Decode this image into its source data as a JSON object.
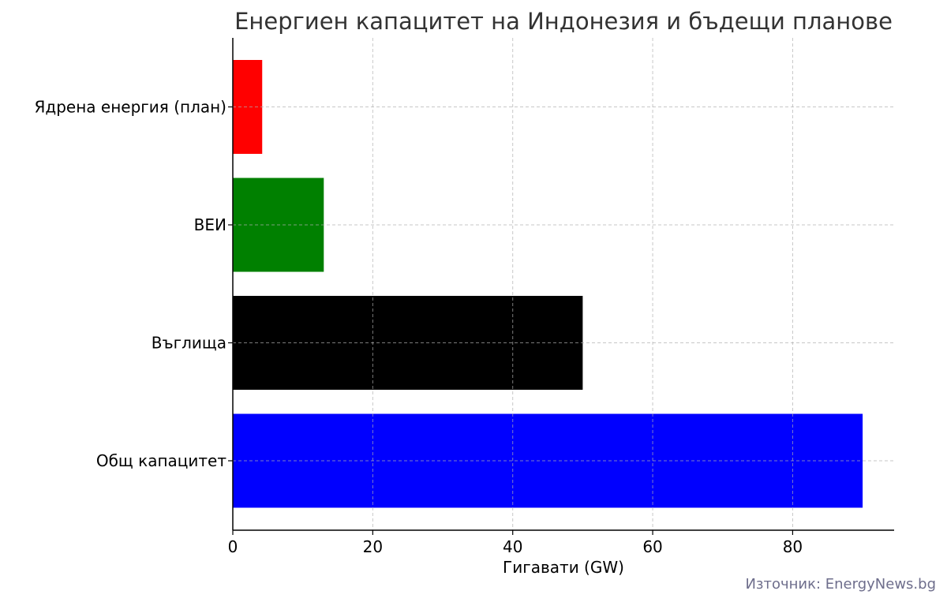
{
  "chart_data": {
    "type": "bar",
    "orientation": "horizontal",
    "title": "Енергиен капацитет на Индонезия и бъдещи планове",
    "xlabel": "Гигавати (GW)",
    "ylabel": "",
    "categories": [
      "Общ капацитет",
      "Въглища",
      "ВЕИ",
      "Ядрена енергия (план)"
    ],
    "values": [
      90,
      50,
      13,
      4.2
    ],
    "colors": [
      "#0000ff",
      "#000000",
      "#008000",
      "#ff0000"
    ],
    "xlim": [
      0,
      94.5
    ],
    "xticks": [
      0,
      20,
      40,
      60,
      80
    ],
    "grid": true,
    "source": "Източник: EnergyNews.bg"
  }
}
